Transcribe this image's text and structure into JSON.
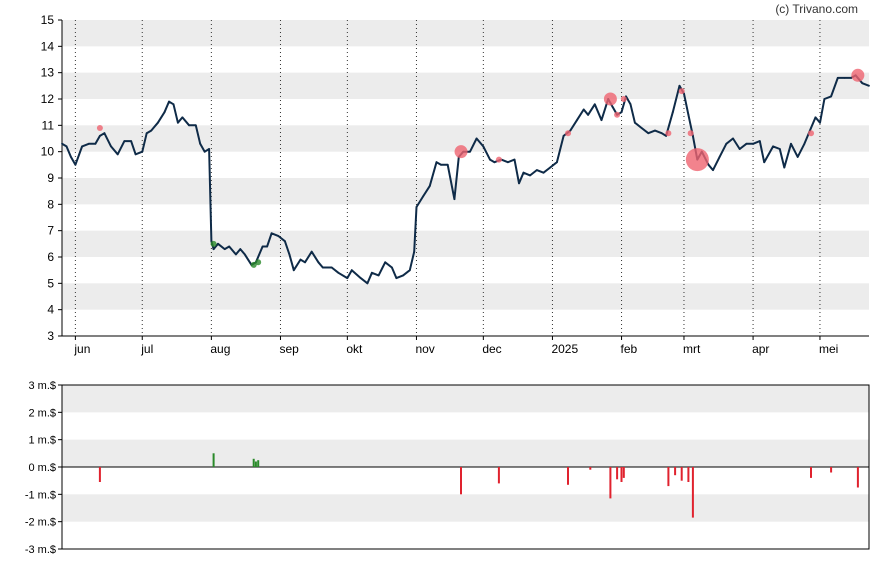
{
  "watermark": "(c) Trivano.com",
  "colors": {
    "band": "#ececec",
    "price_line": "#0f2b48",
    "sell": "#e0222e",
    "buy": "#2a8a2a",
    "sell_marker": "#ef6470",
    "axis": "#000000",
    "month_line": "#333333"
  },
  "chart_data": [
    {
      "type": "line",
      "title": "",
      "xlabel": "",
      "ylabel": "",
      "ylim": [
        3,
        15
      ],
      "y_ticks": [
        "3",
        "4",
        "5",
        "6",
        "7",
        "8",
        "9",
        "10",
        "11",
        "12",
        "13",
        "14",
        "15"
      ],
      "x_ticks": [
        "jun",
        "jul",
        "aug",
        "sep",
        "okt",
        "nov",
        "dec",
        "2025",
        "feb",
        "mrt",
        "apr",
        "mei"
      ],
      "x_tick_dates": [
        "2024-06-01",
        "2024-07-01",
        "2024-08-01",
        "2024-09-01",
        "2024-10-01",
        "2024-11-01",
        "2024-12-01",
        "2025-01-01",
        "2025-02-01",
        "2025-03-01",
        "2025-04-01",
        "2025-05-01"
      ],
      "x_range": [
        "2024-05-26",
        "2025-05-23"
      ],
      "grid": "horizontal bands, dotted vertical month lines",
      "series": [
        {
          "values": [
            [
              "2024-05-26",
              10.3
            ],
            [
              "2024-05-28",
              10.2
            ],
            [
              "2024-05-30",
              9.8
            ],
            [
              "2024-06-01",
              9.5
            ],
            [
              "2024-06-04",
              10.2
            ],
            [
              "2024-06-07",
              10.3
            ],
            [
              "2024-06-10",
              10.3
            ],
            [
              "2024-06-12",
              10.6
            ],
            [
              "2024-06-14",
              10.7
            ],
            [
              "2024-06-17",
              10.2
            ],
            [
              "2024-06-20",
              9.9
            ],
            [
              "2024-06-23",
              10.4
            ],
            [
              "2024-06-26",
              10.4
            ],
            [
              "2024-06-28",
              9.9
            ],
            [
              "2024-07-01",
              10.0
            ],
            [
              "2024-07-03",
              10.7
            ],
            [
              "2024-07-05",
              10.8
            ],
            [
              "2024-07-08",
              11.1
            ],
            [
              "2024-07-11",
              11.5
            ],
            [
              "2024-07-13",
              11.9
            ],
            [
              "2024-07-15",
              11.8
            ],
            [
              "2024-07-17",
              11.1
            ],
            [
              "2024-07-19",
              11.3
            ],
            [
              "2024-07-22",
              11.0
            ],
            [
              "2024-07-25",
              11.0
            ],
            [
              "2024-07-27",
              10.3
            ],
            [
              "2024-07-29",
              10.0
            ],
            [
              "2024-07-31",
              10.1
            ],
            [
              "2024-08-01",
              6.6
            ],
            [
              "2024-08-02",
              6.3
            ],
            [
              "2024-08-04",
              6.5
            ],
            [
              "2024-08-07",
              6.3
            ],
            [
              "2024-08-09",
              6.4
            ],
            [
              "2024-08-12",
              6.1
            ],
            [
              "2024-08-14",
              6.3
            ],
            [
              "2024-08-16",
              6.1
            ],
            [
              "2024-08-19",
              5.7
            ],
            [
              "2024-08-21",
              5.8
            ],
            [
              "2024-08-24",
              6.4
            ],
            [
              "2024-08-26",
              6.4
            ],
            [
              "2024-08-28",
              6.9
            ],
            [
              "2024-08-31",
              6.8
            ],
            [
              "2024-09-03",
              6.6
            ],
            [
              "2024-09-05",
              6.1
            ],
            [
              "2024-09-07",
              5.5
            ],
            [
              "2024-09-10",
              5.9
            ],
            [
              "2024-09-12",
              5.8
            ],
            [
              "2024-09-15",
              6.2
            ],
            [
              "2024-09-18",
              5.8
            ],
            [
              "2024-09-20",
              5.6
            ],
            [
              "2024-09-24",
              5.6
            ],
            [
              "2024-09-27",
              5.4
            ],
            [
              "2024-10-01",
              5.2
            ],
            [
              "2024-10-03",
              5.5
            ],
            [
              "2024-10-07",
              5.2
            ],
            [
              "2024-10-10",
              5.0
            ],
            [
              "2024-10-12",
              5.4
            ],
            [
              "2024-10-15",
              5.3
            ],
            [
              "2024-10-18",
              5.8
            ],
            [
              "2024-10-21",
              5.6
            ],
            [
              "2024-10-23",
              5.2
            ],
            [
              "2024-10-26",
              5.3
            ],
            [
              "2024-10-29",
              5.5
            ],
            [
              "2024-10-31",
              6.2
            ],
            [
              "2024-11-01",
              7.9
            ],
            [
              "2024-11-04",
              8.3
            ],
            [
              "2024-11-07",
              8.7
            ],
            [
              "2024-11-10",
              9.6
            ],
            [
              "2024-11-12",
              9.5
            ],
            [
              "2024-11-15",
              9.5
            ],
            [
              "2024-11-18",
              8.2
            ],
            [
              "2024-11-20",
              9.8
            ],
            [
              "2024-11-22",
              10.0
            ],
            [
              "2024-11-25",
              10.0
            ],
            [
              "2024-11-28",
              10.5
            ],
            [
              "2024-12-01",
              10.2
            ],
            [
              "2024-12-04",
              9.7
            ],
            [
              "2024-12-06",
              9.6
            ],
            [
              "2024-12-09",
              9.7
            ],
            [
              "2024-12-12",
              9.6
            ],
            [
              "2024-12-15",
              9.7
            ],
            [
              "2024-12-17",
              8.8
            ],
            [
              "2024-12-19",
              9.2
            ],
            [
              "2024-12-22",
              9.1
            ],
            [
              "2024-12-25",
              9.3
            ],
            [
              "2024-12-28",
              9.2
            ],
            [
              "2024-12-31",
              9.4
            ],
            [
              "2025-01-03",
              9.6
            ],
            [
              "2025-01-06",
              10.6
            ],
            [
              "2025-01-09",
              10.8
            ],
            [
              "2025-01-12",
              11.2
            ],
            [
              "2025-01-15",
              11.6
            ],
            [
              "2025-01-17",
              11.4
            ],
            [
              "2025-01-20",
              11.8
            ],
            [
              "2025-01-23",
              11.2
            ],
            [
              "2025-01-26",
              12.0
            ],
            [
              "2025-01-28",
              11.7
            ],
            [
              "2025-01-30",
              11.4
            ],
            [
              "2025-02-01",
              11.5
            ],
            [
              "2025-02-03",
              12.1
            ],
            [
              "2025-02-05",
              11.8
            ],
            [
              "2025-02-07",
              11.1
            ],
            [
              "2025-02-10",
              10.9
            ],
            [
              "2025-02-13",
              10.7
            ],
            [
              "2025-02-16",
              10.8
            ],
            [
              "2025-02-19",
              10.7
            ],
            [
              "2025-02-21",
              10.6
            ],
            [
              "2025-02-24",
              11.5
            ],
            [
              "2025-02-27",
              12.5
            ],
            [
              "2025-03-01",
              12.2
            ],
            [
              "2025-03-03",
              11.4
            ],
            [
              "2025-03-05",
              10.6
            ],
            [
              "2025-03-07",
              9.7
            ],
            [
              "2025-03-09",
              10.0
            ],
            [
              "2025-03-12",
              9.5
            ],
            [
              "2025-03-14",
              9.3
            ],
            [
              "2025-03-17",
              9.8
            ],
            [
              "2025-03-20",
              10.3
            ],
            [
              "2025-03-23",
              10.5
            ],
            [
              "2025-03-26",
              10.1
            ],
            [
              "2025-03-29",
              10.3
            ],
            [
              "2025-04-01",
              10.3
            ],
            [
              "2025-04-04",
              10.4
            ],
            [
              "2025-04-06",
              9.6
            ],
            [
              "2025-04-08",
              9.9
            ],
            [
              "2025-04-10",
              10.2
            ],
            [
              "2025-04-13",
              10.1
            ],
            [
              "2025-04-15",
              9.4
            ],
            [
              "2025-04-18",
              10.3
            ],
            [
              "2025-04-21",
              9.8
            ],
            [
              "2025-04-24",
              10.3
            ],
            [
              "2025-04-27",
              10.9
            ],
            [
              "2025-04-29",
              11.3
            ],
            [
              "2025-05-01",
              11.1
            ],
            [
              "2025-05-03",
              12.0
            ],
            [
              "2025-05-06",
              12.1
            ],
            [
              "2025-05-09",
              12.8
            ],
            [
              "2025-05-12",
              12.8
            ],
            [
              "2025-05-15",
              12.8
            ],
            [
              "2025-05-17",
              12.9
            ],
            [
              "2025-05-20",
              12.6
            ],
            [
              "2025-05-23",
              12.5
            ]
          ]
        }
      ],
      "trade_markers": [
        {
          "date": "2024-06-12",
          "price": 10.9,
          "kind": "sell",
          "size": "small"
        },
        {
          "date": "2024-08-02",
          "price": 6.5,
          "kind": "buy",
          "size": "small"
        },
        {
          "date": "2024-08-20",
          "price": 5.7,
          "kind": "buy",
          "size": "small"
        },
        {
          "date": "2024-08-22",
          "price": 5.8,
          "kind": "buy",
          "size": "small"
        },
        {
          "date": "2024-11-21",
          "price": 10.0,
          "kind": "sell",
          "size": "medium"
        },
        {
          "date": "2024-12-08",
          "price": 9.7,
          "kind": "sell",
          "size": "small"
        },
        {
          "date": "2025-01-08",
          "price": 10.7,
          "kind": "sell",
          "size": "small"
        },
        {
          "date": "2025-01-27",
          "price": 12.0,
          "kind": "sell",
          "size": "medium"
        },
        {
          "date": "2025-01-30",
          "price": 11.4,
          "kind": "sell",
          "size": "small"
        },
        {
          "date": "2025-02-02",
          "price": 12.0,
          "kind": "sell",
          "size": "small"
        },
        {
          "date": "2025-02-22",
          "price": 10.7,
          "kind": "sell",
          "size": "small"
        },
        {
          "date": "2025-02-28",
          "price": 12.3,
          "kind": "sell",
          "size": "small"
        },
        {
          "date": "2025-03-04",
          "price": 10.7,
          "kind": "sell",
          "size": "small"
        },
        {
          "date": "2025-03-07",
          "price": 9.7,
          "kind": "sell",
          "size": "large"
        },
        {
          "date": "2025-04-27",
          "price": 10.7,
          "kind": "sell",
          "size": "small"
        },
        {
          "date": "2025-05-18",
          "price": 12.9,
          "kind": "sell",
          "size": "medium"
        }
      ]
    },
    {
      "type": "bar",
      "title": "",
      "xlabel": "",
      "ylabel": "",
      "ylim": [
        -3,
        3
      ],
      "y_ticks": [
        "3 m.$",
        "2 m.$",
        "1 m.$",
        "0 m.$",
        "-1 m.$",
        "-2 m.$",
        "-3 m.$"
      ],
      "x_range": [
        "2024-05-26",
        "2025-05-23"
      ],
      "unit": "m.$",
      "grid": "horizontal bands",
      "series": [
        {
          "values": [
            [
              "2024-06-12",
              -0.55
            ],
            [
              "2024-08-02",
              0.5
            ],
            [
              "2024-08-20",
              0.3
            ],
            [
              "2024-08-21",
              0.2
            ],
            [
              "2024-08-22",
              0.25
            ],
            [
              "2024-11-21",
              -1.0
            ],
            [
              "2024-12-08",
              -0.6
            ],
            [
              "2025-01-08",
              -0.65
            ],
            [
              "2025-01-18",
              -0.1
            ],
            [
              "2025-01-27",
              -1.15
            ],
            [
              "2025-01-30",
              -0.45
            ],
            [
              "2025-02-01",
              -0.55
            ],
            [
              "2025-02-02",
              -0.4
            ],
            [
              "2025-02-22",
              -0.7
            ],
            [
              "2025-02-25",
              -0.3
            ],
            [
              "2025-02-28",
              -0.5
            ],
            [
              "2025-03-03",
              -0.55
            ],
            [
              "2025-03-05",
              -1.85
            ],
            [
              "2025-04-27",
              -0.4
            ],
            [
              "2025-05-06",
              -0.2
            ],
            [
              "2025-05-18",
              -0.75
            ]
          ]
        }
      ]
    }
  ]
}
